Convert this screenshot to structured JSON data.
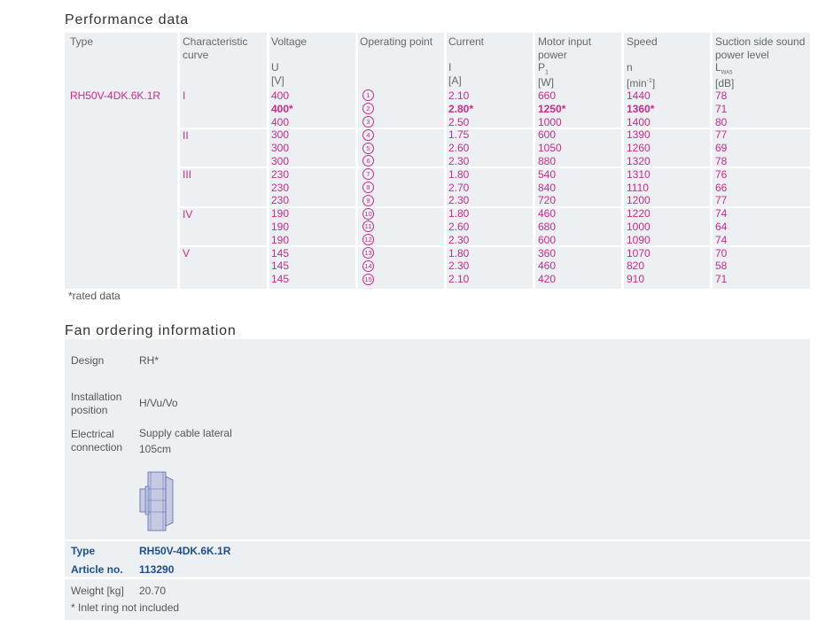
{
  "performance": {
    "title": "Performance data",
    "headers": {
      "type": "Type",
      "curve": [
        "Characteristic",
        "curve"
      ],
      "voltage": "Voltage",
      "operating_point": "Operating point",
      "current": "Current",
      "motor_power": [
        "Motor input",
        "power"
      ],
      "speed": "Speed",
      "sound": [
        "Suction side sound",
        "power level"
      ]
    },
    "units": {
      "voltage": [
        "U",
        "[V]"
      ],
      "current": [
        "I",
        "[A]"
      ],
      "motor_power": [
        "P",
        "1",
        "[W]"
      ],
      "speed": [
        "n",
        "[min",
        "-1",
        "]"
      ],
      "sound": [
        "L",
        "WA5",
        "[dB]"
      ]
    },
    "type_value": "RH50V-4DK.6K.1R",
    "curves": [
      "I",
      "II",
      "III",
      "IV",
      "V"
    ],
    "rows": [
      {
        "voltage": "400",
        "op": "1",
        "current": "2.10",
        "power": "660",
        "speed": "1440",
        "sound": "78",
        "bold": false
      },
      {
        "voltage": "400*",
        "op": "2",
        "current": "2.80*",
        "power": "1250*",
        "speed": "1360*",
        "sound": "71",
        "bold": true
      },
      {
        "voltage": "400",
        "op": "3",
        "current": "2.50",
        "power": "1000",
        "speed": "1400",
        "sound": "80",
        "bold": false
      },
      {
        "voltage": "300",
        "op": "4",
        "current": "1.75",
        "power": "600",
        "speed": "1390",
        "sound": "77",
        "bold": false
      },
      {
        "voltage": "300",
        "op": "5",
        "current": "2.60",
        "power": "1050",
        "speed": "1260",
        "sound": "69",
        "bold": false
      },
      {
        "voltage": "300",
        "op": "6",
        "current": "2.30",
        "power": "880",
        "speed": "1320",
        "sound": "78",
        "bold": false
      },
      {
        "voltage": "230",
        "op": "7",
        "current": "1.80",
        "power": "540",
        "speed": "1310",
        "sound": "76",
        "bold": false
      },
      {
        "voltage": "230",
        "op": "8",
        "current": "2.70",
        "power": "840",
        "speed": "1110",
        "sound": "66",
        "bold": false
      },
      {
        "voltage": "230",
        "op": "9",
        "current": "2.30",
        "power": "720",
        "speed": "1200",
        "sound": "77",
        "bold": false
      },
      {
        "voltage": "190",
        "op": "10",
        "current": "1.80",
        "power": "460",
        "speed": "1220",
        "sound": "74",
        "bold": false
      },
      {
        "voltage": "190",
        "op": "11",
        "current": "2.60",
        "power": "680",
        "speed": "1000",
        "sound": "64",
        "bold": false
      },
      {
        "voltage": "190",
        "op": "12",
        "current": "2.30",
        "power": "600",
        "speed": "1090",
        "sound": "74",
        "bold": false
      },
      {
        "voltage": "145",
        "op": "13",
        "current": "1.80",
        "power": "360",
        "speed": "1070",
        "sound": "70",
        "bold": false
      },
      {
        "voltage": "145",
        "op": "14",
        "current": "2.30",
        "power": "460",
        "speed": "820",
        "sound": "58",
        "bold": false
      },
      {
        "voltage": "145",
        "op": "15",
        "current": "2.10",
        "power": "420",
        "speed": "910",
        "sound": "71",
        "bold": false
      }
    ],
    "note": "*rated data"
  },
  "ordering": {
    "title": "Fan ordering information",
    "design_label": "Design",
    "design_value": "RH*",
    "installation_label": [
      "Installation",
      "position"
    ],
    "installation_value": "H/Vu/Vo",
    "electrical_label": [
      "Electrical",
      "connection"
    ],
    "electrical_value": [
      "Supply cable lateral",
      "105cm"
    ],
    "type_label": "Type",
    "type_value": "RH50V-4DK.6K.1R",
    "article_label": "Article no.",
    "article_value": "113290",
    "weight_label": "Weight [kg]",
    "weight_value": "20.70",
    "footnote": "* Inlet ring not included"
  },
  "colors": {
    "accent": "#cc2a8a",
    "blue": "#1f4e8c",
    "panel": "#edf0f2"
  }
}
